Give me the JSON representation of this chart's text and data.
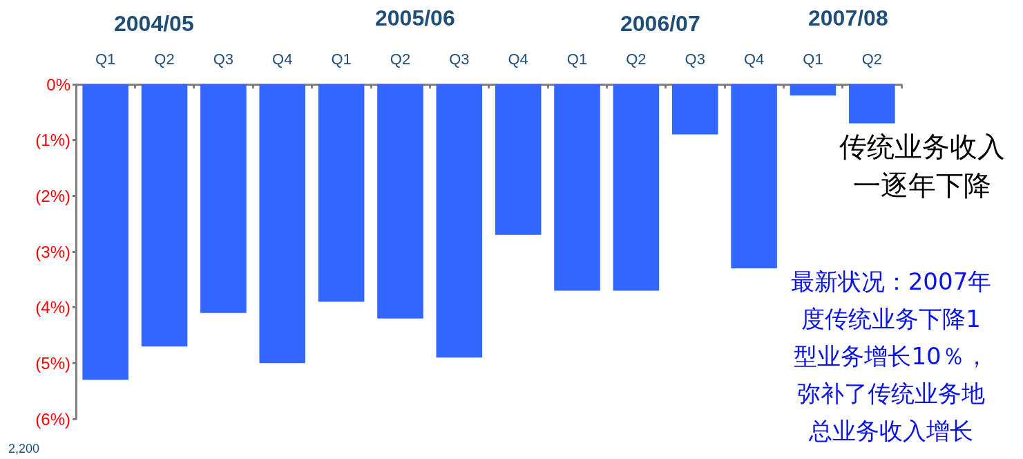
{
  "chart_data": {
    "type": "bar",
    "categories": [
      "Q1",
      "Q2",
      "Q3",
      "Q4",
      "Q1",
      "Q2",
      "Q3",
      "Q4",
      "Q1",
      "Q2",
      "Q3",
      "Q4",
      "Q1",
      "Q2"
    ],
    "values": [
      -5.3,
      -4.7,
      -4.1,
      -5.0,
      -3.9,
      -4.2,
      -4.9,
      -2.7,
      -3.7,
      -3.7,
      -0.9,
      -3.3,
      -0.2,
      -0.7
    ],
    "color": "#3366ff",
    "ylim": [
      -6,
      0
    ],
    "yticks": [
      {
        "value": 0,
        "label": "0%"
      },
      {
        "value": -1,
        "label": "(1%)"
      },
      {
        "value": -2,
        "label": "(2%)"
      },
      {
        "value": -3,
        "label": "(3%)"
      },
      {
        "value": -4,
        "label": "(4%)"
      },
      {
        "value": -5,
        "label": "(5%)"
      },
      {
        "value": -6,
        "label": "(6%)"
      }
    ],
    "grid": false,
    "annotations": [
      "2004/05",
      "2005/06",
      "2006/07",
      "2007/08",
      "传统业务收入",
      "一逐年下降",
      "最新状况：2007年",
      "度传统业务下降1",
      "型业务增长10％，",
      "弥补了传统业务地",
      "总业务收入增长",
      "2,200"
    ]
  }
}
